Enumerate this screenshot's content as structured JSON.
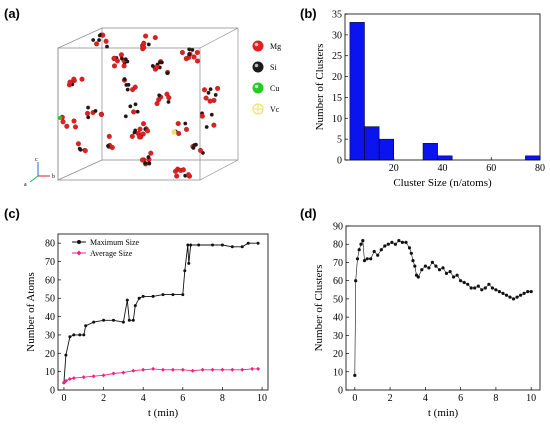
{
  "panels": {
    "a": "(a)",
    "b": "(b)",
    "c": "(c)",
    "d": "(d)"
  },
  "atom_legend": [
    {
      "label": "Mg",
      "color": "#e02020"
    },
    {
      "label": "Si",
      "color": "#1a1a1a"
    },
    {
      "label": "Cu",
      "color": "#22cc22"
    },
    {
      "label": "Vc",
      "color": "#f0e070"
    }
  ],
  "axis_tripod": {
    "c": "c",
    "a": "a",
    "b": "b"
  },
  "chart_data": [
    {
      "id": "b",
      "type": "bar",
      "xlabel": "Cluster Size (n/atoms)",
      "ylabel": "Number of Clusters",
      "xlim": [
        0,
        80
      ],
      "ylim": [
        0,
        35
      ],
      "xticks": [
        20,
        40,
        60,
        80
      ],
      "yticks": [
        0,
        5,
        10,
        15,
        20,
        25,
        30,
        35
      ],
      "bar_color": "#0a14ee",
      "bins": [
        {
          "start": 2,
          "end": 8,
          "value": 33
        },
        {
          "start": 8,
          "end": 14,
          "value": 8
        },
        {
          "start": 14,
          "end": 20,
          "value": 5
        },
        {
          "start": 32,
          "end": 38,
          "value": 4
        },
        {
          "start": 38,
          "end": 44,
          "value": 1
        },
        {
          "start": 74,
          "end": 80,
          "value": 1
        }
      ]
    },
    {
      "id": "c",
      "type": "line",
      "xlabel": "t (min)",
      "ylabel": "Number of Atoms",
      "xlim": [
        -0.3,
        10.3
      ],
      "ylim": [
        0,
        85
      ],
      "xticks": [
        0,
        2,
        4,
        6,
        8,
        10
      ],
      "yticks": [
        0,
        10,
        20,
        30,
        40,
        50,
        60,
        70,
        80
      ],
      "legend_position": "top-left",
      "series": [
        {
          "name": "Maximum Size",
          "color": "#111111",
          "points": [
            [
              0,
              4
            ],
            [
              0.1,
              19
            ],
            [
              0.3,
              29
            ],
            [
              0.5,
              30
            ],
            [
              0.8,
              30
            ],
            [
              1,
              30
            ],
            [
              1.1,
              35
            ],
            [
              1.5,
              37
            ],
            [
              2,
              38
            ],
            [
              2.5,
              38
            ],
            [
              3,
              37
            ],
            [
              3.2,
              49
            ],
            [
              3.3,
              38
            ],
            [
              3.5,
              38
            ],
            [
              3.6,
              46
            ],
            [
              3.8,
              50
            ],
            [
              4,
              51
            ],
            [
              4.5,
              51
            ],
            [
              5,
              52
            ],
            [
              5.5,
              52
            ],
            [
              6,
              52
            ],
            [
              6.1,
              65
            ],
            [
              6.25,
              79
            ],
            [
              6.3,
              69
            ],
            [
              6.4,
              79
            ],
            [
              6.8,
              79
            ],
            [
              7.5,
              79
            ],
            [
              8,
              79
            ],
            [
              8.5,
              78
            ],
            [
              9,
              78
            ],
            [
              9.3,
              80
            ],
            [
              9.8,
              80
            ]
          ]
        },
        {
          "name": "Average Size",
          "color": "#ee2288",
          "points": [
            [
              0,
              4
            ],
            [
              0.1,
              5
            ],
            [
              0.3,
              6
            ],
            [
              0.5,
              6.5
            ],
            [
              1,
              7
            ],
            [
              1.5,
              7.5
            ],
            [
              2,
              8
            ],
            [
              2.5,
              9
            ],
            [
              3,
              9.5
            ],
            [
              3.5,
              10.5
            ],
            [
              4,
              11
            ],
            [
              4.5,
              11.5
            ],
            [
              5,
              11
            ],
            [
              5.5,
              11
            ],
            [
              6,
              11
            ],
            [
              6.5,
              10.5
            ],
            [
              7,
              11
            ],
            [
              7.5,
              11
            ],
            [
              8,
              11
            ],
            [
              8.5,
              11
            ],
            [
              9,
              11
            ],
            [
              9.5,
              11.5
            ],
            [
              9.8,
              11.5
            ]
          ]
        }
      ]
    },
    {
      "id": "d",
      "type": "scatter",
      "xlabel": "t (min)",
      "ylabel": "Number of Clusters",
      "xlim": [
        -0.5,
        10.5
      ],
      "ylim": [
        0,
        90
      ],
      "xticks": [
        0,
        2,
        4,
        6,
        8,
        10
      ],
      "yticks": [
        0,
        10,
        20,
        30,
        40,
        50,
        60,
        70,
        80,
        90
      ],
      "series": [
        {
          "color": "#111111",
          "points": [
            [
              0,
              8
            ],
            [
              0.05,
              60
            ],
            [
              0.15,
              72
            ],
            [
              0.25,
              77
            ],
            [
              0.35,
              80
            ],
            [
              0.45,
              82
            ],
            [
              0.55,
              71
            ],
            [
              0.7,
              72
            ],
            [
              0.9,
              72
            ],
            [
              1.1,
              76
            ],
            [
              1.3,
              74
            ],
            [
              1.5,
              77
            ],
            [
              1.7,
              79
            ],
            [
              1.9,
              80
            ],
            [
              2.1,
              81
            ],
            [
              2.3,
              80
            ],
            [
              2.5,
              82
            ],
            [
              2.7,
              81
            ],
            [
              2.9,
              81
            ],
            [
              3.1,
              78
            ],
            [
              3.2,
              75
            ],
            [
              3.3,
              71
            ],
            [
              3.4,
              68
            ],
            [
              3.5,
              63
            ],
            [
              3.6,
              62
            ],
            [
              3.8,
              66
            ],
            [
              4,
              68
            ],
            [
              4.2,
              67
            ],
            [
              4.4,
              70
            ],
            [
              4.6,
              68
            ],
            [
              4.8,
              66
            ],
            [
              5,
              67
            ],
            [
              5.2,
              64
            ],
            [
              5.4,
              65
            ],
            [
              5.6,
              62
            ],
            [
              5.8,
              63
            ],
            [
              6,
              60
            ],
            [
              6.2,
              59
            ],
            [
              6.4,
              58
            ],
            [
              6.6,
              56
            ],
            [
              6.8,
              56
            ],
            [
              7,
              57
            ],
            [
              7.2,
              55
            ],
            [
              7.4,
              56
            ],
            [
              7.6,
              58
            ],
            [
              7.8,
              56
            ],
            [
              8,
              55
            ],
            [
              8.2,
              54
            ],
            [
              8.4,
              53
            ],
            [
              8.6,
              52
            ],
            [
              8.8,
              51
            ],
            [
              9,
              50
            ],
            [
              9.2,
              51
            ],
            [
              9.4,
              52
            ],
            [
              9.6,
              53
            ],
            [
              9.8,
              54
            ],
            [
              10,
              54
            ]
          ]
        }
      ]
    }
  ]
}
